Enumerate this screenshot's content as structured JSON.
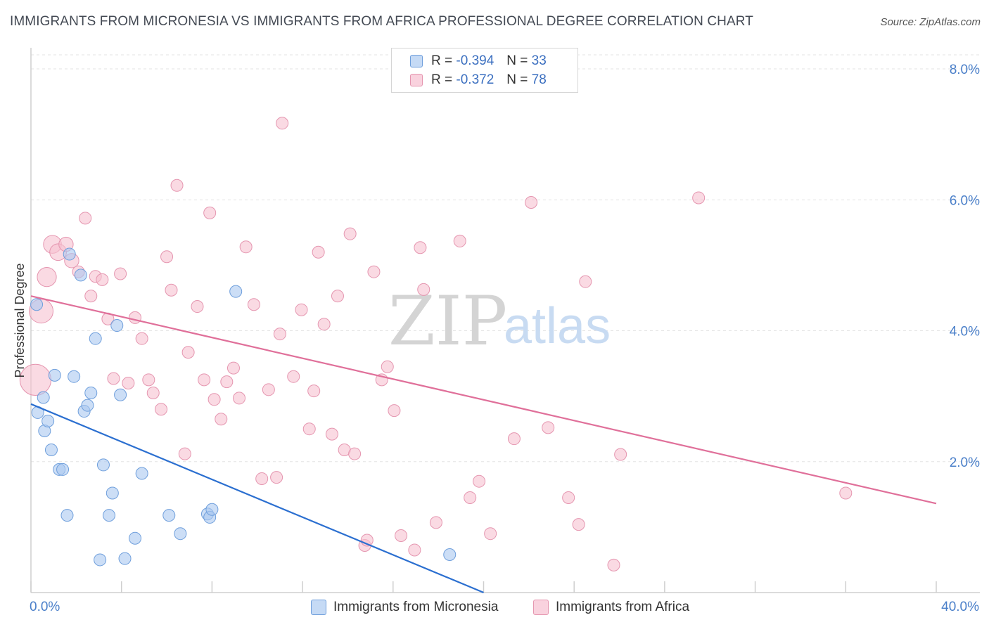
{
  "title": "IMMIGRANTS FROM MICRONESIA VS IMMIGRANTS FROM AFRICA PROFESSIONAL DEGREE CORRELATION CHART",
  "source": "Source: ZipAtlas.com",
  "watermark": {
    "zip": "ZIP",
    "atlas": "atlas"
  },
  "legend": {
    "micronesia": {
      "r_label": "R =",
      "r_value": "-0.394",
      "n_label": "N =",
      "n_value": "33"
    },
    "africa": {
      "r_label": "R =",
      "r_value": "-0.372",
      "n_label": "N =",
      "n_value": "78"
    }
  },
  "bottom_legend": {
    "micronesia": "Immigrants from Micronesia",
    "africa": "Immigrants from Africa"
  },
  "colors": {
    "micronesia_fill": "#aac8f0",
    "micronesia_stroke": "#6f9fdc",
    "micronesia_line": "#2b6fd0",
    "africa_fill": "#f6c1d1",
    "africa_stroke": "#e596b0",
    "africa_line": "#e0709a",
    "axis_text": "#4a7fc9",
    "grid": "#e3e3e3"
  },
  "chart_data": {
    "type": "scatter",
    "title": "IMMIGRANTS FROM MICRONESIA VS IMMIGRANTS FROM AFRICA PROFESSIONAL DEGREE CORRELATION CHART",
    "xlabel": "",
    "ylabel": "Professional Degree",
    "xlim": [
      0,
      40
    ],
    "ylim": [
      0,
      8.2
    ],
    "x_tick_labels": [
      "0.0%",
      "40.0%"
    ],
    "y_ticks": [
      2,
      4,
      6,
      8
    ],
    "y_tick_labels": [
      "2.0%",
      "4.0%",
      "6.0%",
      "8.0%"
    ],
    "grid": true,
    "legend_position": "top-center",
    "series": [
      {
        "name": "Immigrants from Micronesia",
        "points": [
          [
            0.25,
            4.4,
            1
          ],
          [
            0.3,
            2.75,
            1
          ],
          [
            0.55,
            2.98,
            1
          ],
          [
            0.6,
            2.47,
            1
          ],
          [
            0.75,
            2.62,
            1
          ],
          [
            0.9,
            2.18,
            1
          ],
          [
            1.25,
            1.88,
            1
          ],
          [
            1.4,
            1.88,
            1
          ],
          [
            1.6,
            1.18,
            1
          ],
          [
            1.7,
            5.17,
            1
          ],
          [
            1.9,
            3.3,
            1
          ],
          [
            2.2,
            4.85,
            1
          ],
          [
            2.35,
            2.77,
            1
          ],
          [
            2.5,
            2.86,
            1
          ],
          [
            2.65,
            3.05,
            1
          ],
          [
            2.85,
            3.88,
            1
          ],
          [
            3.05,
            0.5,
            1
          ],
          [
            3.2,
            1.95,
            1
          ],
          [
            3.45,
            1.18,
            1
          ],
          [
            3.6,
            1.52,
            1
          ],
          [
            3.8,
            4.08,
            1
          ],
          [
            3.95,
            3.02,
            1
          ],
          [
            4.15,
            0.52,
            1
          ],
          [
            4.6,
            0.83,
            1
          ],
          [
            4.9,
            1.82,
            1
          ],
          [
            6.1,
            1.18,
            1
          ],
          [
            6.6,
            0.9,
            1
          ],
          [
            7.8,
            1.2,
            1
          ],
          [
            7.9,
            1.15,
            1
          ],
          [
            8.0,
            1.27,
            1
          ],
          [
            9.05,
            4.6,
            1
          ],
          [
            18.5,
            0.58,
            1
          ],
          [
            1.05,
            3.32,
            1
          ]
        ]
      },
      {
        "name": "Immigrants from Africa",
        "points": [
          [
            0.2,
            3.25,
            2.6
          ],
          [
            0.45,
            4.3,
            2.0
          ],
          [
            0.7,
            4.82,
            1.6
          ],
          [
            0.95,
            5.32,
            1.5
          ],
          [
            1.2,
            5.2,
            1.4
          ],
          [
            1.55,
            5.32,
            1.2
          ],
          [
            1.8,
            5.07,
            1.2
          ],
          [
            2.1,
            4.9,
            1.0
          ],
          [
            2.4,
            5.72,
            1.0
          ],
          [
            2.65,
            4.53,
            1.0
          ],
          [
            2.85,
            4.83,
            1.0
          ],
          [
            3.15,
            4.78,
            1.0
          ],
          [
            3.4,
            4.18,
            1.0
          ],
          [
            3.65,
            3.27,
            1.0
          ],
          [
            3.95,
            4.87,
            1.0
          ],
          [
            4.3,
            3.2,
            1.0
          ],
          [
            4.6,
            4.2,
            1.0
          ],
          [
            4.9,
            3.88,
            1.0
          ],
          [
            5.2,
            3.25,
            1.0
          ],
          [
            5.4,
            3.05,
            1.0
          ],
          [
            5.75,
            2.8,
            1.0
          ],
          [
            6.0,
            5.13,
            1.0
          ],
          [
            6.2,
            4.62,
            1.0
          ],
          [
            6.45,
            6.22,
            1.0
          ],
          [
            6.8,
            2.12,
            1.0
          ],
          [
            6.95,
            3.67,
            1.0
          ],
          [
            7.35,
            4.37,
            1.0
          ],
          [
            7.65,
            3.25,
            1.0
          ],
          [
            7.9,
            5.8,
            1.0
          ],
          [
            8.1,
            2.95,
            1.0
          ],
          [
            8.4,
            2.65,
            1.0
          ],
          [
            8.65,
            3.22,
            1.0
          ],
          [
            8.95,
            3.43,
            1.0
          ],
          [
            9.2,
            2.97,
            1.0
          ],
          [
            9.5,
            5.28,
            1.0
          ],
          [
            9.85,
            4.4,
            1.0
          ],
          [
            10.2,
            1.74,
            1.0
          ],
          [
            10.5,
            3.1,
            1.0
          ],
          [
            10.85,
            1.76,
            1.0
          ],
          [
            11.0,
            3.95,
            1.0
          ],
          [
            11.1,
            7.17,
            1.0
          ],
          [
            11.6,
            3.3,
            1.0
          ],
          [
            11.95,
            4.32,
            1.0
          ],
          [
            12.3,
            2.5,
            1.0
          ],
          [
            12.5,
            3.08,
            1.0
          ],
          [
            12.7,
            5.2,
            1.0
          ],
          [
            12.95,
            4.1,
            1.0
          ],
          [
            13.3,
            2.42,
            1.0
          ],
          [
            13.55,
            4.53,
            1.0
          ],
          [
            13.85,
            2.18,
            1.0
          ],
          [
            14.1,
            5.48,
            1.0
          ],
          [
            14.3,
            2.12,
            1.0
          ],
          [
            14.75,
            0.72,
            1.0
          ],
          [
            14.85,
            0.8,
            1.0
          ],
          [
            15.15,
            4.9,
            1.0
          ],
          [
            15.5,
            3.25,
            1.0
          ],
          [
            15.75,
            3.45,
            1.0
          ],
          [
            16.05,
            2.78,
            1.0
          ],
          [
            16.35,
            0.87,
            1.0
          ],
          [
            16.95,
            0.65,
            1.0
          ],
          [
            16.95,
            7.8,
            1.0
          ],
          [
            17.2,
            5.27,
            1.0
          ],
          [
            17.35,
            4.63,
            1.0
          ],
          [
            17.9,
            1.07,
            1.0
          ],
          [
            18.95,
            5.37,
            1.0
          ],
          [
            19.4,
            1.45,
            1.0
          ],
          [
            19.8,
            1.7,
            1.0
          ],
          [
            20.3,
            0.9,
            1.0
          ],
          [
            21.35,
            2.35,
            1.0
          ],
          [
            22.1,
            5.96,
            1.0
          ],
          [
            22.85,
            2.52,
            1.0
          ],
          [
            23.75,
            1.45,
            1.0
          ],
          [
            24.2,
            1.04,
            1.0
          ],
          [
            24.5,
            4.75,
            1.0
          ],
          [
            25.75,
            0.42,
            1.0
          ],
          [
            26.05,
            2.11,
            1.0
          ],
          [
            29.5,
            6.03,
            1.0
          ],
          [
            36.0,
            1.52,
            1.0
          ]
        ]
      }
    ],
    "trendlines": [
      {
        "series": "Immigrants from Micronesia",
        "x": [
          0,
          20
        ],
        "y": [
          2.88,
          0
        ]
      },
      {
        "series": "Immigrants from Africa",
        "x": [
          0,
          40
        ],
        "y": [
          4.53,
          1.36
        ]
      }
    ]
  }
}
